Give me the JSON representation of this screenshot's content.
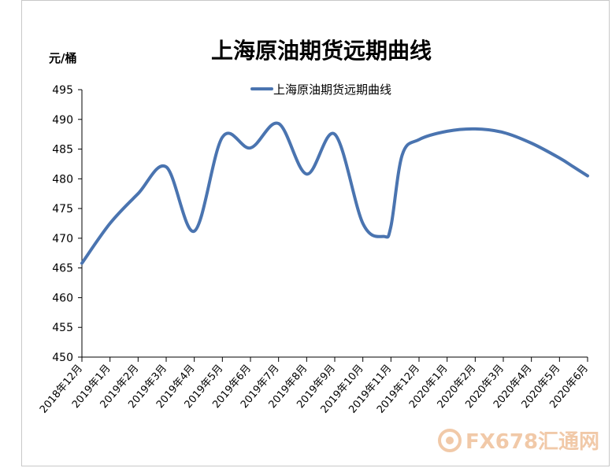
{
  "chart_data": {
    "type": "line",
    "title": "上海原油期货远期曲线",
    "ylabel": "元/桶",
    "ylim": [
      450,
      495
    ],
    "yticks": [
      450,
      455,
      460,
      465,
      470,
      475,
      480,
      485,
      490,
      495
    ],
    "categories": [
      "2018年12月",
      "2019年1月",
      "2019年2月",
      "2019年3月",
      "2019年4月",
      "2019年5月",
      "2019年6月",
      "2019年7月",
      "2019年8月",
      "2019年9月",
      "2019年10月",
      "2019年11月",
      "2019年12月",
      "2020年1月",
      "2020年2月",
      "2020年3月",
      "2020年4月",
      "2020年5月",
      "2020年6月"
    ],
    "series": [
      {
        "name": "上海原油期货远期曲线",
        "color": "#4a74b0",
        "points": [
          [
            0,
            465.8
          ],
          [
            1,
            472.5
          ],
          [
            2,
            477.5
          ],
          [
            3,
            482.0
          ],
          [
            4,
            471.2
          ],
          [
            5,
            487.0
          ],
          [
            6,
            485.2
          ],
          [
            7,
            489.3
          ],
          [
            8,
            480.8
          ],
          [
            9,
            487.5
          ],
          [
            10,
            472.5
          ],
          [
            10.75,
            470.3
          ],
          [
            11,
            472.0
          ],
          [
            11.4,
            484.0
          ],
          [
            12,
            486.6
          ],
          [
            13,
            488.0
          ],
          [
            14,
            488.4
          ],
          [
            15,
            487.8
          ],
          [
            16,
            486.0
          ],
          [
            17,
            483.5
          ],
          [
            17.5,
            482.0
          ],
          [
            18,
            480.5
          ]
        ]
      }
    ],
    "grid": false,
    "legend": "top-center"
  },
  "watermark": {
    "text": "FX678",
    "text_cn": "汇通网",
    "color": "#f1c9a8"
  }
}
